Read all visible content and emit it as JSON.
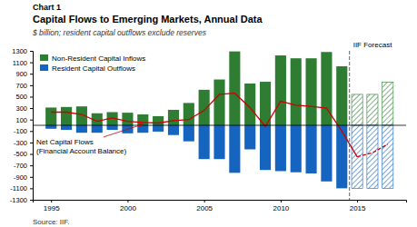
{
  "chart_data": {
    "type": "bar",
    "chart_label": "Chart 1",
    "title": "Capital Flows to Emerging Markets, Annual Data",
    "subtitle": "$ billion; resident capital outflows exclude reserves",
    "source": "Source: IIF.",
    "x": [
      1995,
      1996,
      1997,
      1998,
      1999,
      2000,
      2001,
      2002,
      2003,
      2004,
      2005,
      2006,
      2007,
      2008,
      2009,
      2010,
      2011,
      2012,
      2013,
      2014,
      2015,
      2016,
      2017
    ],
    "series": [
      {
        "name": "Non-Resident Capital Inflows",
        "color": "#2e7d32",
        "values": [
          310,
          320,
          330,
          210,
          230,
          220,
          190,
          160,
          270,
          390,
          620,
          800,
          1290,
          730,
          760,
          1220,
          1170,
          1170,
          1280,
          1030,
          540,
          540,
          750
        ]
      },
      {
        "name": "Resident Capital Outflows",
        "color": "#1565c0",
        "values": [
          -60,
          -80,
          -130,
          -130,
          -80,
          -140,
          -130,
          -110,
          -170,
          -280,
          -590,
          -590,
          -830,
          -420,
          -780,
          -800,
          -820,
          -840,
          -980,
          -1100,
          -1100,
          -1100,
          -1100
        ]
      },
      {
        "type": "line",
        "color": "#cc0000",
        "values": [
          230,
          230,
          190,
          70,
          130,
          70,
          50,
          40,
          80,
          100,
          260,
          540,
          560,
          310,
          -20,
          420,
          350,
          330,
          300,
          -100,
          -550,
          -480,
          -330
        ]
      }
    ],
    "forecast_start": 2015,
    "forecast_label": "IIF Forecast",
    "annotations": [
      "Net Capital Flows",
      "(Financial Account Balance)"
    ],
    "xlim": [
      1993.8,
      2018.2
    ],
    "xticks": [
      1995,
      2000,
      2005,
      2010,
      2015
    ],
    "ylim": [
      -1300,
      1300
    ],
    "yticks": [
      -1300,
      -1100,
      -900,
      -700,
      -500,
      -300,
      -100,
      100,
      300,
      500,
      700,
      900,
      1100,
      1300
    ],
    "grid": false,
    "legend": "upper left"
  }
}
